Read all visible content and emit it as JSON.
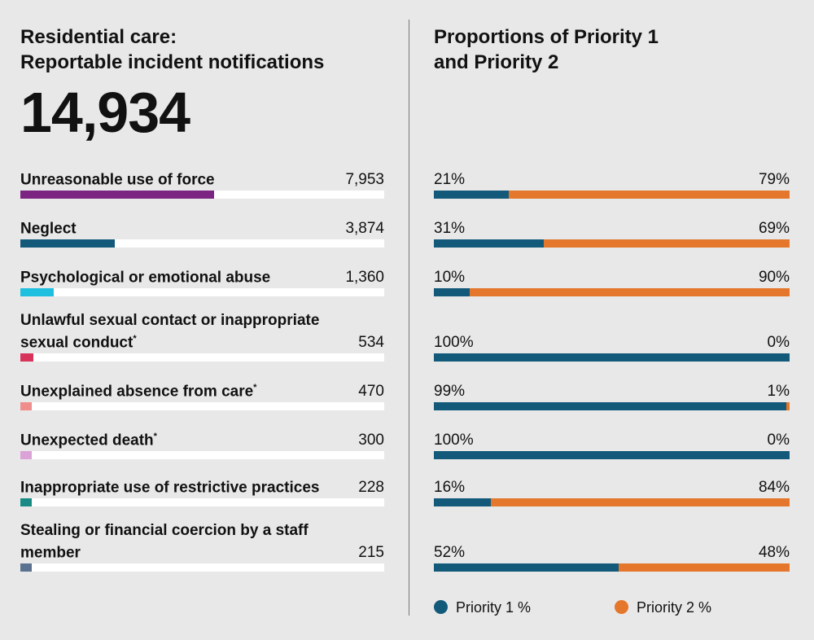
{
  "left": {
    "title_line1": "Residential care:",
    "title_line2": "Reportable incident notifications",
    "total": "14,934"
  },
  "right": {
    "title_line1": "Proportions of Priority 1",
    "title_line2": "and Priority 2"
  },
  "colors": {
    "priority1": "#135a7a",
    "priority2": "#e4772b",
    "track": "#ffffff",
    "background": "#e8e8e8"
  },
  "legend": {
    "priority1": "Priority 1 %",
    "priority2": "Priority 2 %"
  },
  "chart_data": [
    {
      "type": "bar",
      "orientation": "horizontal",
      "title": "Residential care: Reportable incident notifications",
      "total": 14934,
      "xlim": [
        0,
        14934
      ],
      "categories": [
        "Unreasonable use of force",
        "Neglect",
        "Psychological or emotional abuse",
        "Unlawful sexual contact or inappropriate sexual conduct*",
        "Unexplained absence from care*",
        "Unexpected death*",
        "Inappropriate use of restrictive practices",
        "Stealing or financial coercion by a staff member"
      ],
      "values": [
        7953,
        3874,
        1360,
        534,
        470,
        300,
        228,
        215
      ],
      "bar_colors": [
        "#7b2481",
        "#135a7a",
        "#1fbfe0",
        "#d8335a",
        "#ef8c8c",
        "#dba2d8",
        "#1a8a84",
        "#5a7290"
      ]
    },
    {
      "type": "bar",
      "orientation": "horizontal",
      "stacked": true,
      "title": "Proportions of Priority 1 and Priority 2",
      "categories": [
        "Unreasonable use of force",
        "Neglect",
        "Psychological or emotional abuse",
        "Unlawful sexual contact or inappropriate sexual conduct*",
        "Unexplained absence from care*",
        "Unexpected death*",
        "Inappropriate use of restrictive practices",
        "Stealing or financial coercion by a staff member"
      ],
      "xlim": [
        0,
        100
      ],
      "series": [
        {
          "name": "Priority 1 %",
          "values": [
            21,
            31,
            10,
            100,
            99,
            100,
            16,
            52
          ]
        },
        {
          "name": "Priority 2 %",
          "values": [
            79,
            69,
            90,
            0,
            1,
            0,
            84,
            48
          ]
        }
      ],
      "legend_position": "bottom"
    }
  ],
  "rows": [
    {
      "label": "Unreasonable use of force",
      "sup": "",
      "value": "7,953",
      "p1": "21%",
      "p2": "79%"
    },
    {
      "label": "Neglect",
      "sup": "",
      "value": "3,874",
      "p1": "31%",
      "p2": "69%"
    },
    {
      "label": "Psychological or emotional abuse",
      "sup": "",
      "value": "1,360",
      "p1": "10%",
      "p2": "90%"
    },
    {
      "label": "Unlawful sexual contact or inappropriate sexual conduct",
      "sup": "*",
      "value": "534",
      "p1": "100%",
      "p2": "0%"
    },
    {
      "label": "Unexplained absence from care",
      "sup": "*",
      "value": "470",
      "p1": "99%",
      "p2": "1%"
    },
    {
      "label": "Unexpected death",
      "sup": "*",
      "value": "300",
      "p1": "100%",
      "p2": "0%"
    },
    {
      "label": "Inappropriate use of restrictive practices",
      "sup": "",
      "value": "228",
      "p1": "16%",
      "p2": "84%"
    },
    {
      "label": "Stealing or financial coercion by a staff member",
      "sup": "",
      "value": "215",
      "p1": "52%",
      "p2": "48%"
    }
  ]
}
